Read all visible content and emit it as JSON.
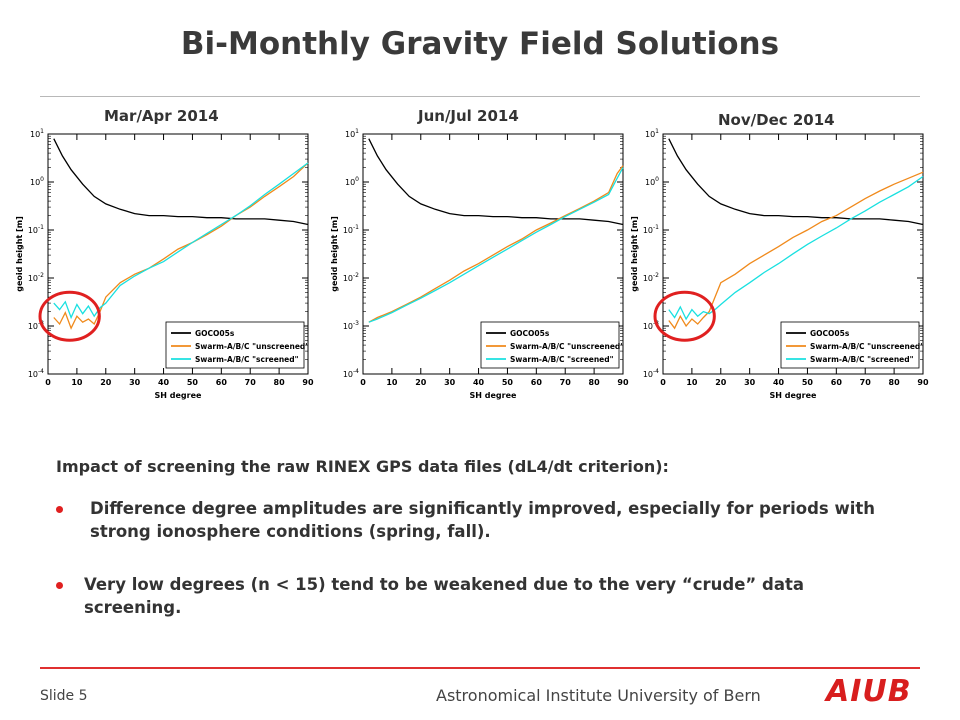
{
  "slide": {
    "title": "Bi-Monthly Gravity Field Solutions",
    "slide_number": "Slide 5",
    "institute": "Astronomical Institute University of Bern",
    "logo_text": "AIUB"
  },
  "colors": {
    "accent_red": "#e02020",
    "goco": "#000000",
    "unscreened": "#f08a1c",
    "screened": "#19e0e0"
  },
  "body": {
    "intro": "Impact of screening the raw RINEX GPS data files (dL4/dt criterion):",
    "bullets": [
      "Difference degree amplitudes are significantly improved, especially for periods with strong ionosphere conditions (spring, fall).",
      "Very low degrees (n < 15) tend to be weakened due to the very “crude” data screening."
    ]
  },
  "chart_data": [
    {
      "type": "line",
      "panel_title": "Mar/Apr 2014",
      "xlabel": "SH degree",
      "ylabel": "geoid height [m]",
      "xlim": [
        0,
        90
      ],
      "ylim": [
        0.0001,
        10
      ],
      "yscale": "log",
      "xticks": [
        "0",
        "10",
        "20",
        "30",
        "40",
        "50",
        "60",
        "70",
        "80",
        "90"
      ],
      "yticks": [
        "10^-4",
        "10^-3",
        "10^-2",
        "10^-1",
        "10^0",
        "10^1"
      ],
      "legend": "bottom-right",
      "highlight_circle": {
        "degree_range": [
          0,
          15
        ]
      },
      "series": [
        {
          "name": "GOCO05s",
          "color": "#000000",
          "x": [
            2,
            5,
            8,
            12,
            16,
            20,
            25,
            30,
            35,
            40,
            45,
            50,
            55,
            60,
            65,
            70,
            75,
            80,
            85,
            90
          ],
          "values": [
            8,
            3.5,
            1.8,
            0.9,
            0.5,
            0.35,
            0.27,
            0.22,
            0.2,
            0.2,
            0.19,
            0.19,
            0.18,
            0.18,
            0.17,
            0.17,
            0.17,
            0.16,
            0.15,
            0.13
          ]
        },
        {
          "name": "Swarm-A/B/C \"unscreened\"",
          "color": "#f08a1c",
          "x": [
            2,
            4,
            6,
            8,
            10,
            12,
            14,
            16,
            18,
            20,
            25,
            30,
            35,
            40,
            45,
            50,
            55,
            60,
            65,
            70,
            75,
            80,
            85,
            90
          ],
          "values": [
            0.0015,
            0.0011,
            0.0019,
            0.0009,
            0.0016,
            0.0012,
            0.0014,
            0.0011,
            0.002,
            0.004,
            0.008,
            0.012,
            0.016,
            0.025,
            0.04,
            0.055,
            0.08,
            0.12,
            0.2,
            0.3,
            0.5,
            0.8,
            1.3,
            2.5
          ]
        },
        {
          "name": "Swarm-A/B/C \"screened\"",
          "color": "#19e0e0",
          "x": [
            2,
            4,
            6,
            8,
            10,
            12,
            14,
            16,
            18,
            20,
            25,
            30,
            35,
            40,
            45,
            50,
            55,
            60,
            65,
            70,
            75,
            80,
            85,
            90
          ],
          "values": [
            0.003,
            0.0022,
            0.0032,
            0.0015,
            0.0028,
            0.0018,
            0.0026,
            0.0016,
            0.0024,
            0.003,
            0.007,
            0.011,
            0.016,
            0.022,
            0.035,
            0.055,
            0.085,
            0.13,
            0.2,
            0.32,
            0.55,
            0.9,
            1.5,
            2.5
          ]
        }
      ]
    },
    {
      "type": "line",
      "panel_title": "Jun/Jul 2014",
      "xlabel": "SH degree",
      "ylabel": "geoid height [m]",
      "xlim": [
        0,
        90
      ],
      "ylim": [
        0.0001,
        10
      ],
      "yscale": "log",
      "xticks": [
        "0",
        "10",
        "20",
        "30",
        "40",
        "50",
        "60",
        "70",
        "80",
        "90"
      ],
      "yticks": [
        "10^-4",
        "10^-3",
        "10^-2",
        "10^-1",
        "10^0",
        "10^1"
      ],
      "legend": "bottom-right",
      "series": [
        {
          "name": "GOCO05s",
          "color": "#000000",
          "x": [
            2,
            5,
            8,
            12,
            16,
            20,
            25,
            30,
            35,
            40,
            45,
            50,
            55,
            60,
            65,
            70,
            75,
            80,
            85,
            90
          ],
          "values": [
            8,
            3.5,
            1.8,
            0.9,
            0.5,
            0.35,
            0.27,
            0.22,
            0.2,
            0.2,
            0.19,
            0.19,
            0.18,
            0.18,
            0.17,
            0.17,
            0.17,
            0.16,
            0.15,
            0.13
          ]
        },
        {
          "name": "Swarm-A/B/C \"unscreened\"",
          "color": "#f08a1c",
          "x": [
            2,
            5,
            10,
            15,
            20,
            25,
            30,
            35,
            40,
            45,
            50,
            55,
            60,
            65,
            70,
            75,
            80,
            85,
            88,
            90
          ],
          "values": [
            0.0012,
            0.0015,
            0.002,
            0.0028,
            0.004,
            0.006,
            0.009,
            0.014,
            0.02,
            0.03,
            0.045,
            0.065,
            0.1,
            0.14,
            0.2,
            0.28,
            0.4,
            0.6,
            1.5,
            2.2
          ]
        },
        {
          "name": "Swarm-A/B/C \"screened\"",
          "color": "#19e0e0",
          "x": [
            2,
            5,
            10,
            15,
            20,
            25,
            30,
            35,
            40,
            45,
            50,
            55,
            60,
            65,
            70,
            75,
            80,
            85,
            88,
            90
          ],
          "values": [
            0.0012,
            0.0014,
            0.0019,
            0.0027,
            0.0038,
            0.0055,
            0.008,
            0.012,
            0.018,
            0.027,
            0.04,
            0.06,
            0.09,
            0.13,
            0.19,
            0.27,
            0.38,
            0.55,
            1.2,
            2.0
          ]
        }
      ]
    },
    {
      "type": "line",
      "panel_title": "Nov/Dec 2014",
      "xlabel": "SH degree",
      "ylabel": "geoid height [m]",
      "xlim": [
        0,
        90
      ],
      "ylim": [
        0.0001,
        10
      ],
      "yscale": "log",
      "xticks": [
        "0",
        "10",
        "20",
        "30",
        "40",
        "50",
        "60",
        "70",
        "80",
        "90"
      ],
      "yticks": [
        "10^-4",
        "10^-3",
        "10^-2",
        "10^-1",
        "10^0",
        "10^1"
      ],
      "legend": "bottom-right",
      "highlight_circle": {
        "degree_range": [
          0,
          15
        ]
      },
      "series": [
        {
          "name": "GOCO05s",
          "color": "#000000",
          "x": [
            2,
            5,
            8,
            12,
            16,
            20,
            25,
            30,
            35,
            40,
            45,
            50,
            55,
            60,
            65,
            70,
            75,
            80,
            85,
            90
          ],
          "values": [
            8,
            3.5,
            1.8,
            0.9,
            0.5,
            0.35,
            0.27,
            0.22,
            0.2,
            0.2,
            0.19,
            0.19,
            0.18,
            0.18,
            0.17,
            0.17,
            0.17,
            0.16,
            0.15,
            0.13
          ]
        },
        {
          "name": "Swarm-A/B/C \"unscreened\"",
          "color": "#f08a1c",
          "x": [
            2,
            4,
            6,
            8,
            10,
            12,
            14,
            16,
            18,
            20,
            25,
            30,
            35,
            40,
            45,
            50,
            55,
            60,
            65,
            70,
            75,
            80,
            85,
            90
          ],
          "values": [
            0.0013,
            0.0009,
            0.0016,
            0.001,
            0.0014,
            0.0011,
            0.0015,
            0.002,
            0.004,
            0.008,
            0.012,
            0.02,
            0.03,
            0.045,
            0.07,
            0.1,
            0.15,
            0.2,
            0.3,
            0.45,
            0.65,
            0.9,
            1.2,
            1.6
          ]
        },
        {
          "name": "Swarm-A/B/C \"screened\"",
          "color": "#19e0e0",
          "x": [
            2,
            4,
            6,
            8,
            10,
            12,
            14,
            16,
            18,
            20,
            25,
            30,
            35,
            40,
            45,
            50,
            55,
            60,
            65,
            70,
            75,
            80,
            85,
            90
          ],
          "values": [
            0.0022,
            0.0015,
            0.0025,
            0.0014,
            0.0022,
            0.0016,
            0.002,
            0.0018,
            0.0022,
            0.0028,
            0.005,
            0.008,
            0.013,
            0.02,
            0.032,
            0.05,
            0.075,
            0.11,
            0.17,
            0.25,
            0.38,
            0.55,
            0.8,
            1.3
          ]
        }
      ]
    }
  ]
}
